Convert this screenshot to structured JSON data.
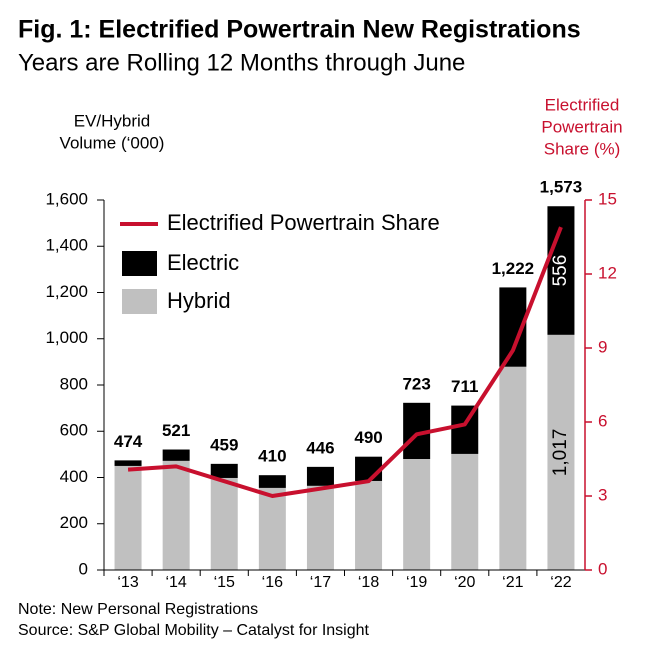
{
  "chart_data": {
    "type": "bar",
    "title": "Fig. 1: Electrified Powertrain New Registrations",
    "subtitle": "Years are Rolling 12 Months through June",
    "ylabel": [
      "EV/Hybrid",
      "Volume (‘000)"
    ],
    "y2label": [
      "Electrified",
      "Powertrain",
      "Share (%)"
    ],
    "categories": [
      "‘13",
      "‘14",
      "‘15",
      "‘16",
      "‘17",
      "‘18",
      "‘19",
      "‘20",
      "‘21",
      "‘22"
    ],
    "series": [
      {
        "name": "Hybrid",
        "color": "#c0c0c0",
        "values": [
          450,
          472,
          398,
          355,
          364,
          385,
          480,
          502,
          879,
          1017
        ],
        "value_labels": [
          null,
          null,
          null,
          null,
          null,
          null,
          null,
          null,
          null,
          "1,017"
        ]
      },
      {
        "name": "Electric",
        "color": "#000000",
        "values": [
          24,
          49,
          61,
          55,
          82,
          105,
          243,
          209,
          343,
          556
        ],
        "value_labels": [
          null,
          null,
          null,
          null,
          null,
          null,
          null,
          null,
          null,
          "556"
        ]
      },
      {
        "name": "Electrified Powertrain Share",
        "color": "#c8102e",
        "axis": "y2",
        "type": "line",
        "values": [
          4.07,
          4.2,
          3.6,
          3.0,
          3.3,
          3.6,
          5.5,
          5.9,
          8.9,
          13.9
        ]
      }
    ],
    "totals": [
      474,
      521,
      459,
      410,
      446,
      490,
      723,
      711,
      1222,
      1573
    ],
    "total_labels": [
      "474",
      "521",
      "459",
      "410",
      "446",
      "490",
      "723",
      "711",
      "1,222",
      "1,573"
    ],
    "ylim": [
      0,
      1600
    ],
    "yticks": [
      0,
      200,
      400,
      600,
      800,
      {
        "value": 1000,
        "label": "1,000"
      },
      {
        "value": 1200,
        "label": "1,200"
      },
      {
        "value": 1400,
        "label": "1,400"
      },
      {
        "value": 1600,
        "label": "1,600"
      }
    ],
    "y2lim": [
      0,
      15
    ],
    "y2ticks": [
      0,
      3,
      6,
      9,
      12,
      15
    ],
    "y2color": "#c8102e",
    "legend": "upper left",
    "notes": [
      "Note: New Personal Registrations",
      "Source: S&P Global Mobility – Catalyst for Insight"
    ]
  }
}
